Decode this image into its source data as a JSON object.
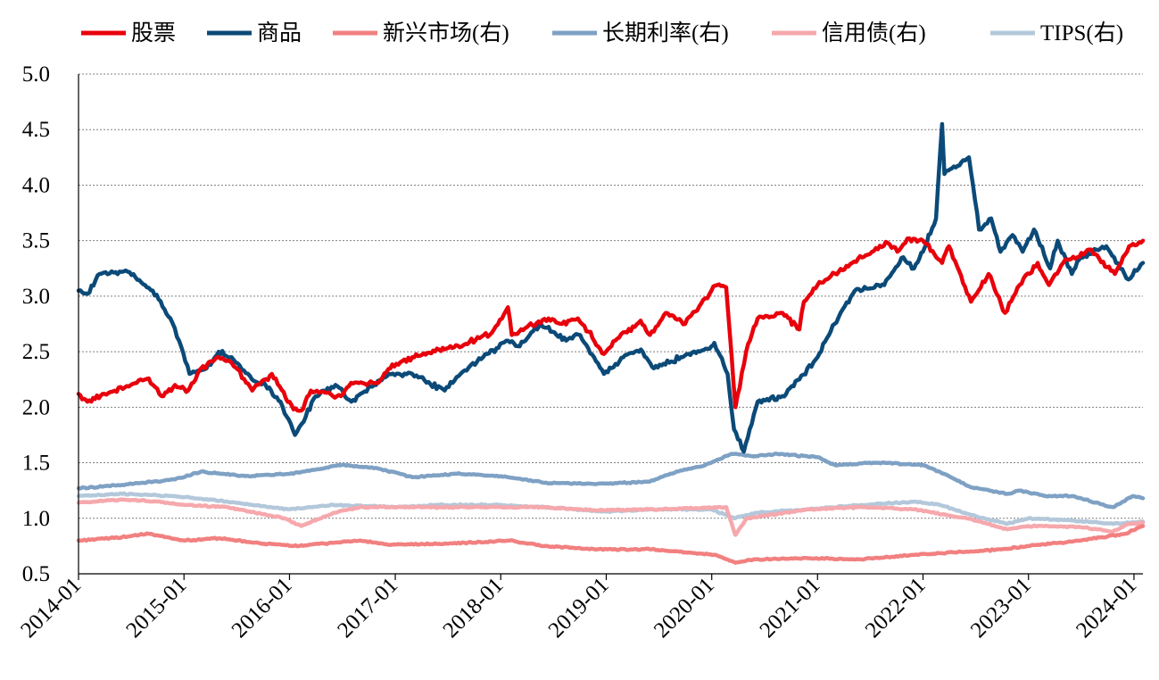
{
  "chart_data": {
    "type": "line",
    "title": "",
    "xlabel": "",
    "ylabel": "",
    "ylim": [
      0.5,
      5.0
    ],
    "yticks": [
      "5.0",
      "4.5",
      "4.0",
      "3.5",
      "3.0",
      "2.5",
      "2.0",
      "1.5",
      "1.0",
      "0.5"
    ],
    "xticks": [
      "2014-01",
      "2015-01",
      "2016-01",
      "2017-01",
      "2018-01",
      "2019-01",
      "2020-01",
      "2021-01",
      "2022-01",
      "2023-01",
      "2024-01"
    ],
    "x_domain": [
      "2014-01-01",
      "2024-02-01"
    ],
    "grid": "horizontal dotted",
    "legend_position": "top",
    "series": [
      {
        "name": "股票",
        "color": "#E8000B",
        "points": [
          [
            "2014-01-01",
            2.12
          ],
          [
            "2014-02-01",
            2.05
          ],
          [
            "2014-04-01",
            2.12
          ],
          [
            "2014-07-01",
            2.2
          ],
          [
            "2014-09-01",
            2.26
          ],
          [
            "2014-10-15",
            2.1
          ],
          [
            "2014-12-01",
            2.2
          ],
          [
            "2015-01-15",
            2.15
          ],
          [
            "2015-03-01",
            2.35
          ],
          [
            "2015-05-01",
            2.45
          ],
          [
            "2015-06-15",
            2.4
          ],
          [
            "2015-08-25",
            2.15
          ],
          [
            "2015-11-01",
            2.3
          ],
          [
            "2016-01-15",
            1.98
          ],
          [
            "2016-02-11",
            1.97
          ],
          [
            "2016-03-15",
            2.15
          ],
          [
            "2016-06-27",
            2.1
          ],
          [
            "2016-08-01",
            2.22
          ],
          [
            "2016-11-04",
            2.22
          ],
          [
            "2016-12-15",
            2.35
          ],
          [
            "2017-03-01",
            2.45
          ],
          [
            "2017-06-01",
            2.52
          ],
          [
            "2017-09-01",
            2.57
          ],
          [
            "2017-12-01",
            2.67
          ],
          [
            "2018-01-26",
            2.9
          ],
          [
            "2018-02-08",
            2.65
          ],
          [
            "2018-04-01",
            2.72
          ],
          [
            "2018-06-15",
            2.8
          ],
          [
            "2018-08-01",
            2.75
          ],
          [
            "2018-09-25",
            2.8
          ],
          [
            "2018-11-01",
            2.68
          ],
          [
            "2018-12-24",
            2.48
          ],
          [
            "2019-02-01",
            2.6
          ],
          [
            "2019-04-30",
            2.78
          ],
          [
            "2019-06-01",
            2.65
          ],
          [
            "2019-07-26",
            2.85
          ],
          [
            "2019-10-01",
            2.75
          ],
          [
            "2019-12-31",
            3.05
          ],
          [
            "2020-01-20",
            3.1
          ],
          [
            "2020-02-20",
            3.08
          ],
          [
            "2020-03-23",
            2.0
          ],
          [
            "2020-04-29",
            2.5
          ],
          [
            "2020-06-08",
            2.8
          ],
          [
            "2020-09-02",
            2.85
          ],
          [
            "2020-10-30",
            2.7
          ],
          [
            "2020-11-15",
            2.95
          ],
          [
            "2021-01-01",
            3.1
          ],
          [
            "2021-05-01",
            3.3
          ],
          [
            "2021-09-01",
            3.48
          ],
          [
            "2021-10-04",
            3.4
          ],
          [
            "2021-11-08",
            3.52
          ],
          [
            "2022-01-01",
            3.5
          ],
          [
            "2022-03-08",
            3.3
          ],
          [
            "2022-04-01",
            3.45
          ],
          [
            "2022-06-16",
            2.95
          ],
          [
            "2022-08-16",
            3.2
          ],
          [
            "2022-10-12",
            2.85
          ],
          [
            "2022-12-01",
            3.1
          ],
          [
            "2023-02-02",
            3.3
          ],
          [
            "2023-03-13",
            3.1
          ],
          [
            "2023-05-01",
            3.3
          ],
          [
            "2023-07-31",
            3.42
          ],
          [
            "2023-10-27",
            3.2
          ],
          [
            "2023-12-15",
            3.45
          ],
          [
            "2024-02-01",
            3.5
          ]
        ]
      },
      {
        "name": "商品",
        "color": "#0B4A78",
        "points": [
          [
            "2014-01-01",
            3.05
          ],
          [
            "2014-02-01",
            3.02
          ],
          [
            "2014-03-15",
            3.2
          ],
          [
            "2014-06-20",
            3.22
          ],
          [
            "2014-09-15",
            3.05
          ],
          [
            "2014-11-15",
            2.8
          ],
          [
            "2014-12-15",
            2.6
          ],
          [
            "2015-01-20",
            2.3
          ],
          [
            "2015-03-20",
            2.35
          ],
          [
            "2015-05-01",
            2.5
          ],
          [
            "2015-06-15",
            2.45
          ],
          [
            "2015-08-24",
            2.25
          ],
          [
            "2015-10-10",
            2.2
          ],
          [
            "2015-12-01",
            2.05
          ],
          [
            "2016-01-20",
            1.75
          ],
          [
            "2016-02-12",
            1.85
          ],
          [
            "2016-04-01",
            2.1
          ],
          [
            "2016-06-08",
            2.2
          ],
          [
            "2016-08-02",
            2.05
          ],
          [
            "2016-10-20",
            2.2
          ],
          [
            "2016-12-10",
            2.3
          ],
          [
            "2017-03-01",
            2.3
          ],
          [
            "2017-06-21",
            2.15
          ],
          [
            "2017-08-15",
            2.3
          ],
          [
            "2017-11-01",
            2.45
          ],
          [
            "2018-01-26",
            2.6
          ],
          [
            "2018-03-01",
            2.55
          ],
          [
            "2018-05-20",
            2.75
          ],
          [
            "2018-08-15",
            2.6
          ],
          [
            "2018-10-03",
            2.65
          ],
          [
            "2018-12-24",
            2.3
          ],
          [
            "2019-03-01",
            2.45
          ],
          [
            "2019-05-01",
            2.52
          ],
          [
            "2019-06-15",
            2.35
          ],
          [
            "2019-09-16",
            2.45
          ],
          [
            "2019-12-31",
            2.55
          ],
          [
            "2020-01-10",
            2.58
          ],
          [
            "2020-02-25",
            2.3
          ],
          [
            "2020-03-18",
            1.8
          ],
          [
            "2020-04-21",
            1.6
          ],
          [
            "2020-06-08",
            2.05
          ],
          [
            "2020-09-01",
            2.1
          ],
          [
            "2020-10-30",
            2.25
          ],
          [
            "2021-01-01",
            2.45
          ],
          [
            "2021-03-01",
            2.75
          ],
          [
            "2021-05-10",
            3.05
          ],
          [
            "2021-08-20",
            3.1
          ],
          [
            "2021-10-25",
            3.35
          ],
          [
            "2021-12-01",
            3.25
          ],
          [
            "2022-01-01",
            3.4
          ],
          [
            "2022-02-15",
            3.7
          ],
          [
            "2022-03-08",
            4.55
          ],
          [
            "2022-03-16",
            4.1
          ],
          [
            "2022-06-09",
            4.25
          ],
          [
            "2022-07-14",
            3.6
          ],
          [
            "2022-08-25",
            3.7
          ],
          [
            "2022-09-26",
            3.4
          ],
          [
            "2022-11-07",
            3.55
          ],
          [
            "2022-12-12",
            3.4
          ],
          [
            "2023-01-20",
            3.6
          ],
          [
            "2023-03-17",
            3.25
          ],
          [
            "2023-04-12",
            3.5
          ],
          [
            "2023-05-31",
            3.2
          ],
          [
            "2023-07-01",
            3.35
          ],
          [
            "2023-09-27",
            3.45
          ],
          [
            "2023-10-31",
            3.3
          ],
          [
            "2023-12-13",
            3.15
          ],
          [
            "2024-02-01",
            3.3
          ]
        ]
      },
      {
        "name": "新兴市场(右)",
        "color": "#F28080",
        "points": [
          [
            "2014-01-01",
            0.8
          ],
          [
            "2014-06-01",
            0.83
          ],
          [
            "2014-09-01",
            0.86
          ],
          [
            "2015-01-01",
            0.8
          ],
          [
            "2015-05-01",
            0.82
          ],
          [
            "2015-09-01",
            0.78
          ],
          [
            "2016-01-15",
            0.75
          ],
          [
            "2016-09-01",
            0.8
          ],
          [
            "2016-12-15",
            0.76
          ],
          [
            "2017-06-01",
            0.77
          ],
          [
            "2017-12-01",
            0.79
          ],
          [
            "2018-02-01",
            0.8
          ],
          [
            "2018-06-01",
            0.75
          ],
          [
            "2018-12-01",
            0.72
          ],
          [
            "2019-06-01",
            0.72
          ],
          [
            "2019-12-01",
            0.68
          ],
          [
            "2020-01-15",
            0.67
          ],
          [
            "2020-03-23",
            0.6
          ],
          [
            "2020-06-01",
            0.63
          ],
          [
            "2020-12-01",
            0.64
          ],
          [
            "2021-06-01",
            0.63
          ],
          [
            "2021-12-01",
            0.67
          ],
          [
            "2022-06-01",
            0.7
          ],
          [
            "2022-10-01",
            0.72
          ],
          [
            "2023-01-01",
            0.75
          ],
          [
            "2023-07-01",
            0.8
          ],
          [
            "2023-12-01",
            0.86
          ],
          [
            "2024-02-01",
            0.93
          ]
        ]
      },
      {
        "name": "长期利率(右)",
        "color": "#7EA1C4",
        "points": [
          [
            "2014-01-01",
            1.27
          ],
          [
            "2014-06-01",
            1.3
          ],
          [
            "2014-12-01",
            1.35
          ],
          [
            "2015-03-01",
            1.42
          ],
          [
            "2015-08-01",
            1.38
          ],
          [
            "2016-01-01",
            1.4
          ],
          [
            "2016-07-01",
            1.48
          ],
          [
            "2016-11-01",
            1.45
          ],
          [
            "2017-03-01",
            1.37
          ],
          [
            "2017-08-01",
            1.4
          ],
          [
            "2018-01-01",
            1.38
          ],
          [
            "2018-06-01",
            1.32
          ],
          [
            "2018-12-01",
            1.31
          ],
          [
            "2019-06-01",
            1.33
          ],
          [
            "2019-09-01",
            1.42
          ],
          [
            "2019-12-01",
            1.47
          ],
          [
            "2020-03-09",
            1.58
          ],
          [
            "2020-06-01",
            1.56
          ],
          [
            "2020-08-15",
            1.58
          ],
          [
            "2021-01-01",
            1.55
          ],
          [
            "2021-03-01",
            1.48
          ],
          [
            "2021-08-01",
            1.5
          ],
          [
            "2022-01-01",
            1.48
          ],
          [
            "2022-03-15",
            1.4
          ],
          [
            "2022-06-15",
            1.28
          ],
          [
            "2022-10-20",
            1.22
          ],
          [
            "2022-12-01",
            1.25
          ],
          [
            "2023-03-01",
            1.2
          ],
          [
            "2023-06-01",
            1.2
          ],
          [
            "2023-10-19",
            1.1
          ],
          [
            "2023-12-27",
            1.2
          ],
          [
            "2024-02-01",
            1.18
          ]
        ]
      },
      {
        "name": "信用债(右)",
        "color": "#F6A8AC",
        "points": [
          [
            "2014-01-01",
            1.14
          ],
          [
            "2014-06-01",
            1.17
          ],
          [
            "2014-10-01",
            1.15
          ],
          [
            "2015-01-01",
            1.12
          ],
          [
            "2015-06-01",
            1.1
          ],
          [
            "2015-12-15",
            1.0
          ],
          [
            "2016-02-11",
            0.93
          ],
          [
            "2016-06-01",
            1.05
          ],
          [
            "2016-09-01",
            1.1
          ],
          [
            "2017-06-01",
            1.1
          ],
          [
            "2018-01-01",
            1.1
          ],
          [
            "2018-06-01",
            1.1
          ],
          [
            "2018-12-01",
            1.07
          ],
          [
            "2019-06-01",
            1.08
          ],
          [
            "2020-02-20",
            1.1
          ],
          [
            "2020-03-23",
            0.85
          ],
          [
            "2020-05-01",
            1.0
          ],
          [
            "2020-12-01",
            1.08
          ],
          [
            "2021-06-01",
            1.1
          ],
          [
            "2021-12-01",
            1.08
          ],
          [
            "2022-06-01",
            1.0
          ],
          [
            "2022-10-20",
            0.9
          ],
          [
            "2023-01-01",
            0.93
          ],
          [
            "2023-07-01",
            0.92
          ],
          [
            "2023-10-20",
            0.88
          ],
          [
            "2023-12-15",
            0.95
          ],
          [
            "2024-02-01",
            0.96
          ]
        ]
      },
      {
        "name": "TIPS(右)",
        "color": "#B3C8DA",
        "points": [
          [
            "2014-01-01",
            1.2
          ],
          [
            "2014-06-01",
            1.22
          ],
          [
            "2014-12-01",
            1.2
          ],
          [
            "2015-06-01",
            1.15
          ],
          [
            "2016-01-01",
            1.08
          ],
          [
            "2016-06-01",
            1.12
          ],
          [
            "2017-01-01",
            1.1
          ],
          [
            "2017-06-01",
            1.12
          ],
          [
            "2018-01-01",
            1.12
          ],
          [
            "2018-06-01",
            1.1
          ],
          [
            "2019-01-01",
            1.06
          ],
          [
            "2019-06-01",
            1.08
          ],
          [
            "2020-01-01",
            1.08
          ],
          [
            "2020-03-19",
            1.0
          ],
          [
            "2020-06-01",
            1.05
          ],
          [
            "2020-12-01",
            1.08
          ],
          [
            "2021-06-01",
            1.12
          ],
          [
            "2021-12-01",
            1.15
          ],
          [
            "2022-03-01",
            1.12
          ],
          [
            "2022-06-15",
            1.03
          ],
          [
            "2022-10-20",
            0.95
          ],
          [
            "2023-01-01",
            1.0
          ],
          [
            "2023-06-01",
            0.98
          ],
          [
            "2023-10-20",
            0.95
          ],
          [
            "2024-02-01",
            0.97
          ]
        ]
      }
    ]
  }
}
